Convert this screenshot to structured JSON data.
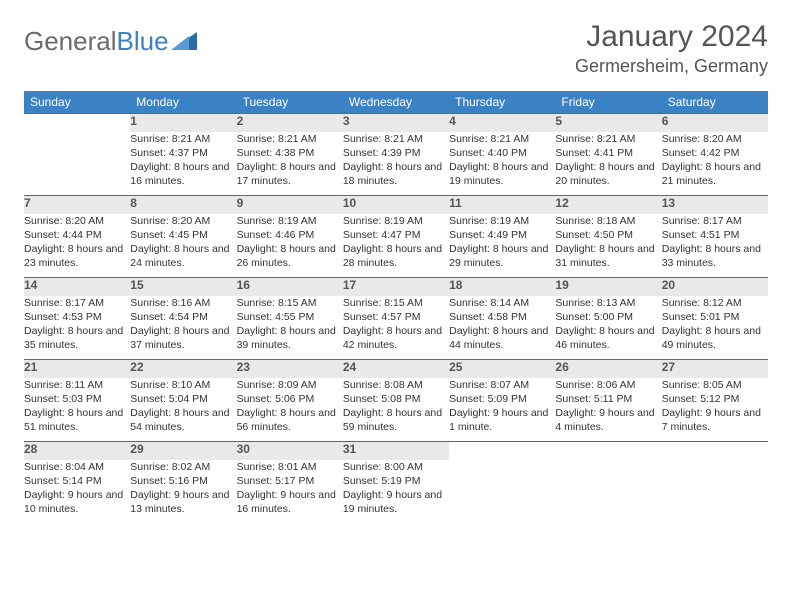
{
  "brand": {
    "word1": "General",
    "word2": "Blue"
  },
  "title": "January 2024",
  "location": "Germersheim, Germany",
  "colors": {
    "header_bg": "#3b82c4",
    "header_text": "#ffffff",
    "daynum_bg": "#e9e9e9",
    "row_border": "#3b6fa0",
    "body_text": "#333333",
    "title_text": "#555555",
    "logo_gray": "#6b6b6b",
    "logo_blue": "#3b82c4"
  },
  "weekdays": [
    "Sunday",
    "Monday",
    "Tuesday",
    "Wednesday",
    "Thursday",
    "Friday",
    "Saturday"
  ],
  "weeks": [
    [
      null,
      {
        "n": "1",
        "sunrise": "8:21 AM",
        "sunset": "4:37 PM",
        "daylight": "8 hours and 16 minutes."
      },
      {
        "n": "2",
        "sunrise": "8:21 AM",
        "sunset": "4:38 PM",
        "daylight": "8 hours and 17 minutes."
      },
      {
        "n": "3",
        "sunrise": "8:21 AM",
        "sunset": "4:39 PM",
        "daylight": "8 hours and 18 minutes."
      },
      {
        "n": "4",
        "sunrise": "8:21 AM",
        "sunset": "4:40 PM",
        "daylight": "8 hours and 19 minutes."
      },
      {
        "n": "5",
        "sunrise": "8:21 AM",
        "sunset": "4:41 PM",
        "daylight": "8 hours and 20 minutes."
      },
      {
        "n": "6",
        "sunrise": "8:20 AM",
        "sunset": "4:42 PM",
        "daylight": "8 hours and 21 minutes."
      }
    ],
    [
      {
        "n": "7",
        "sunrise": "8:20 AM",
        "sunset": "4:44 PM",
        "daylight": "8 hours and 23 minutes."
      },
      {
        "n": "8",
        "sunrise": "8:20 AM",
        "sunset": "4:45 PM",
        "daylight": "8 hours and 24 minutes."
      },
      {
        "n": "9",
        "sunrise": "8:19 AM",
        "sunset": "4:46 PM",
        "daylight": "8 hours and 26 minutes."
      },
      {
        "n": "10",
        "sunrise": "8:19 AM",
        "sunset": "4:47 PM",
        "daylight": "8 hours and 28 minutes."
      },
      {
        "n": "11",
        "sunrise": "8:19 AM",
        "sunset": "4:49 PM",
        "daylight": "8 hours and 29 minutes."
      },
      {
        "n": "12",
        "sunrise": "8:18 AM",
        "sunset": "4:50 PM",
        "daylight": "8 hours and 31 minutes."
      },
      {
        "n": "13",
        "sunrise": "8:17 AM",
        "sunset": "4:51 PM",
        "daylight": "8 hours and 33 minutes."
      }
    ],
    [
      {
        "n": "14",
        "sunrise": "8:17 AM",
        "sunset": "4:53 PM",
        "daylight": "8 hours and 35 minutes."
      },
      {
        "n": "15",
        "sunrise": "8:16 AM",
        "sunset": "4:54 PM",
        "daylight": "8 hours and 37 minutes."
      },
      {
        "n": "16",
        "sunrise": "8:15 AM",
        "sunset": "4:55 PM",
        "daylight": "8 hours and 39 minutes."
      },
      {
        "n": "17",
        "sunrise": "8:15 AM",
        "sunset": "4:57 PM",
        "daylight": "8 hours and 42 minutes."
      },
      {
        "n": "18",
        "sunrise": "8:14 AM",
        "sunset": "4:58 PM",
        "daylight": "8 hours and 44 minutes."
      },
      {
        "n": "19",
        "sunrise": "8:13 AM",
        "sunset": "5:00 PM",
        "daylight": "8 hours and 46 minutes."
      },
      {
        "n": "20",
        "sunrise": "8:12 AM",
        "sunset": "5:01 PM",
        "daylight": "8 hours and 49 minutes."
      }
    ],
    [
      {
        "n": "21",
        "sunrise": "8:11 AM",
        "sunset": "5:03 PM",
        "daylight": "8 hours and 51 minutes."
      },
      {
        "n": "22",
        "sunrise": "8:10 AM",
        "sunset": "5:04 PM",
        "daylight": "8 hours and 54 minutes."
      },
      {
        "n": "23",
        "sunrise": "8:09 AM",
        "sunset": "5:06 PM",
        "daylight": "8 hours and 56 minutes."
      },
      {
        "n": "24",
        "sunrise": "8:08 AM",
        "sunset": "5:08 PM",
        "daylight": "8 hours and 59 minutes."
      },
      {
        "n": "25",
        "sunrise": "8:07 AM",
        "sunset": "5:09 PM",
        "daylight": "9 hours and 1 minute."
      },
      {
        "n": "26",
        "sunrise": "8:06 AM",
        "sunset": "5:11 PM",
        "daylight": "9 hours and 4 minutes."
      },
      {
        "n": "27",
        "sunrise": "8:05 AM",
        "sunset": "5:12 PM",
        "daylight": "9 hours and 7 minutes."
      }
    ],
    [
      {
        "n": "28",
        "sunrise": "8:04 AM",
        "sunset": "5:14 PM",
        "daylight": "9 hours and 10 minutes."
      },
      {
        "n": "29",
        "sunrise": "8:02 AM",
        "sunset": "5:16 PM",
        "daylight": "9 hours and 13 minutes."
      },
      {
        "n": "30",
        "sunrise": "8:01 AM",
        "sunset": "5:17 PM",
        "daylight": "9 hours and 16 minutes."
      },
      {
        "n": "31",
        "sunrise": "8:00 AM",
        "sunset": "5:19 PM",
        "daylight": "9 hours and 19 minutes."
      },
      null,
      null,
      null
    ]
  ],
  "labels": {
    "sunrise": "Sunrise: ",
    "sunset": "Sunset: ",
    "daylight": "Daylight: "
  }
}
